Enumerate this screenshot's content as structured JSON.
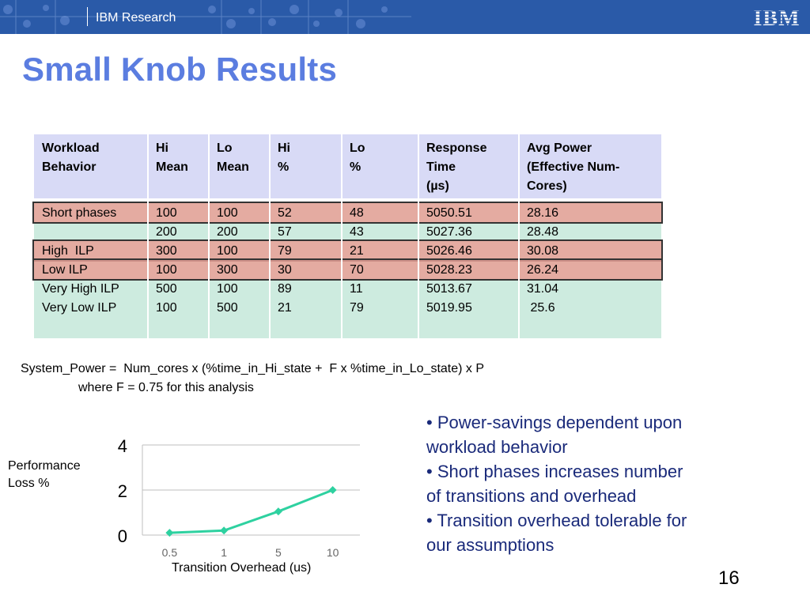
{
  "header": {
    "org": "IBM Research",
    "logo": "IBM",
    "banner_color": "#2a5aa8",
    "pattern_icon": "network-pattern-icon"
  },
  "title": "Small Knob Results",
  "table": {
    "headers": [
      [
        "Workload",
        "Behavior"
      ],
      [
        "Hi",
        "Mean"
      ],
      [
        "Lo",
        "Mean"
      ],
      [
        "Hi",
        "%"
      ],
      [
        "Lo",
        "%"
      ],
      [
        "Response",
        "Time",
        "(µs)"
      ],
      [
        "Avg Power",
        "(Effective Num-",
        "Cores)"
      ]
    ],
    "rows": [
      [
        "Short phases",
        "100",
        "100",
        "52",
        "48",
        "5050.51",
        "28.16"
      ],
      [
        "",
        "200",
        "200",
        "57",
        "43",
        "5027.36",
        "28.48"
      ],
      [
        "High  ILP",
        "300",
        "100",
        "79",
        "21",
        "5026.46",
        "30.08"
      ],
      [
        "Low ILP",
        "100",
        "300",
        "30",
        "70",
        "5028.23",
        "26.24"
      ],
      [
        "Very High ILP",
        "500",
        "100",
        "89",
        "11",
        "5013.67",
        "31.04"
      ],
      [
        "Very Low ILP",
        "100",
        "500",
        "21",
        "79",
        "5019.95",
        " 25.6"
      ]
    ],
    "highlighted_rows": [
      0,
      2,
      3
    ],
    "header_color": "#d8daf6",
    "body_color": "#cdebdf",
    "highlight_color": "#e8a096"
  },
  "formula": {
    "line1": "System_Power =  Num_cores x (%time_in_Hi_state +  F x %time_in_Lo_state) x P",
    "line2": "where F = 0.75 for this analysis"
  },
  "bullets": [
    "• Power-savings dependent upon workload behavior",
    "•  Short phases increases number of transitions and overhead",
    "•  Transition overhead tolerable for our assumptions"
  ],
  "chart_data": {
    "type": "line",
    "x": [
      0.5,
      1,
      5,
      10
    ],
    "x_tick_labels": [
      "0.5",
      "1",
      "5",
      "10"
    ],
    "values": [
      0.1,
      0.2,
      1.05,
      2.0
    ],
    "yticks": [
      "0",
      "2",
      "4"
    ],
    "ylim": [
      0,
      4
    ],
    "ylabel": "Performance Loss %",
    "xlabel": "Transition Overhead (us)",
    "line_color": "#2ed1a0",
    "grid": true
  },
  "page_number": "16"
}
